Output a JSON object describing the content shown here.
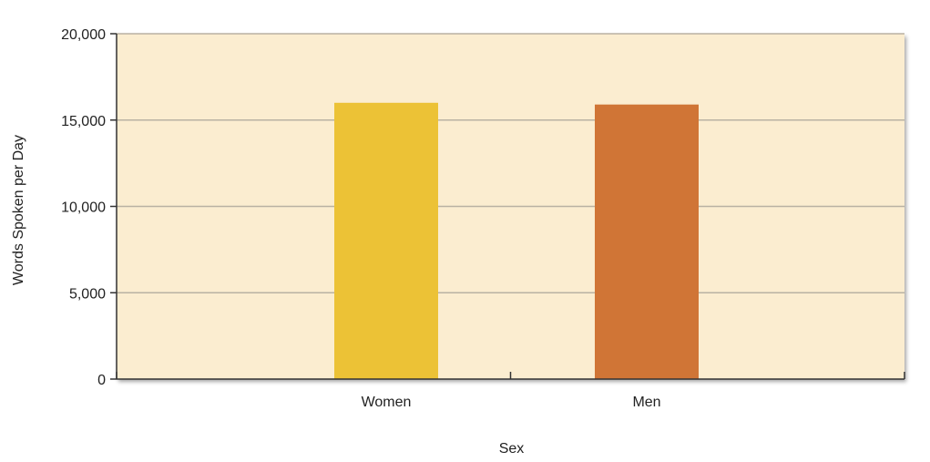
{
  "chart_data": {
    "type": "bar",
    "categories": [
      "Women",
      "Men"
    ],
    "values": [
      16000,
      15900
    ],
    "xlabel": "Sex",
    "ylabel": "Words Spoken per Day",
    "ylim": [
      0,
      20000
    ],
    "yticks": [
      0,
      5000,
      10000,
      15000,
      20000
    ],
    "ytick_labels": [
      "0",
      "5,000",
      "10,000",
      "15,000",
      "20,000"
    ],
    "grid": true,
    "legend": "none"
  },
  "colors": {
    "plot_background": "#fbedd0",
    "gridline": "#b9b2a3",
    "bar_colors": [
      "#ecc236",
      "#d07536"
    ]
  }
}
